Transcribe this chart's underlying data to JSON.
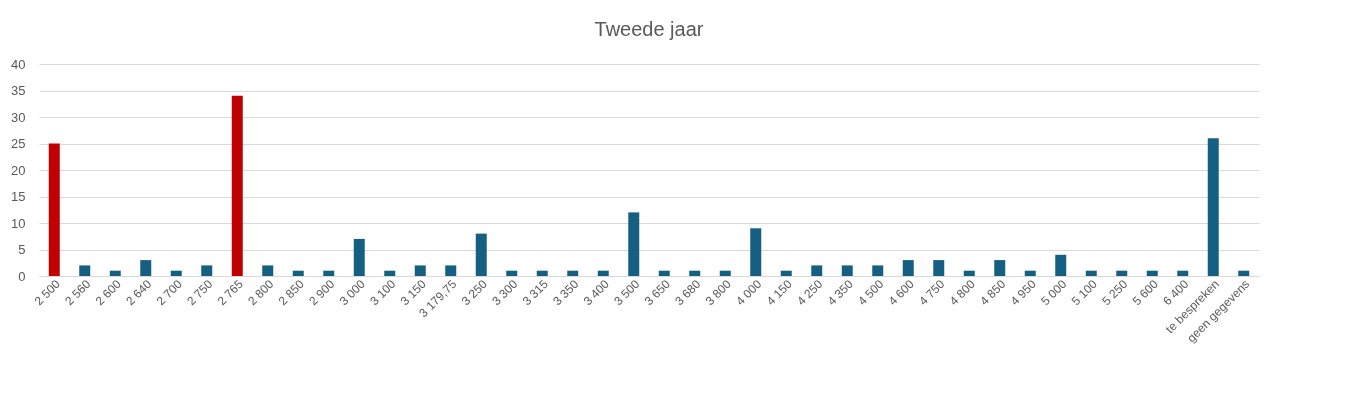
{
  "chart_data": {
    "type": "bar",
    "title": "Tweede jaar",
    "categories": [
      "2 500",
      "2 560",
      "2 600",
      "2 640",
      "2 700",
      "2 750",
      "2 765",
      "2 800",
      "2 850",
      "2 900",
      "3 000",
      "3 100",
      "3 150",
      "3 179,75",
      "3 250",
      "3 300",
      "3 315",
      "3 350",
      "3 400",
      "3 500",
      "3 650",
      "3 680",
      "3 800",
      "4 000",
      "4 150",
      "4 250",
      "4 350",
      "4 500",
      "4 600",
      "4 750",
      "4 800",
      "4 850",
      "4 950",
      "5 000",
      "5 100",
      "5 250",
      "5 600",
      "6 400",
      "te bespreken",
      "geen gegevens"
    ],
    "values": [
      25,
      2,
      1,
      3,
      1,
      2,
      34,
      2,
      1,
      1,
      7,
      1,
      2,
      2,
      8,
      1,
      1,
      1,
      1,
      12,
      1,
      1,
      1,
      9,
      1,
      2,
      2,
      2,
      3,
      3,
      1,
      3,
      1,
      4,
      1,
      1,
      1,
      1,
      26,
      1
    ],
    "colors": [
      "#c00000",
      "#156082",
      "#156082",
      "#156082",
      "#156082",
      "#156082",
      "#c00000",
      "#156082",
      "#156082",
      "#156082",
      "#156082",
      "#156082",
      "#156082",
      "#156082",
      "#156082",
      "#156082",
      "#156082",
      "#156082",
      "#156082",
      "#156082",
      "#156082",
      "#156082",
      "#156082",
      "#156082",
      "#156082",
      "#156082",
      "#156082",
      "#156082",
      "#156082",
      "#156082",
      "#156082",
      "#156082",
      "#156082",
      "#156082",
      "#156082",
      "#156082",
      "#156082",
      "#156082",
      "#156082",
      "#156082"
    ],
    "ylim": [
      0,
      40
    ],
    "yticks": [
      0,
      5,
      10,
      15,
      20,
      25,
      30,
      35,
      40
    ],
    "grid": "y"
  }
}
